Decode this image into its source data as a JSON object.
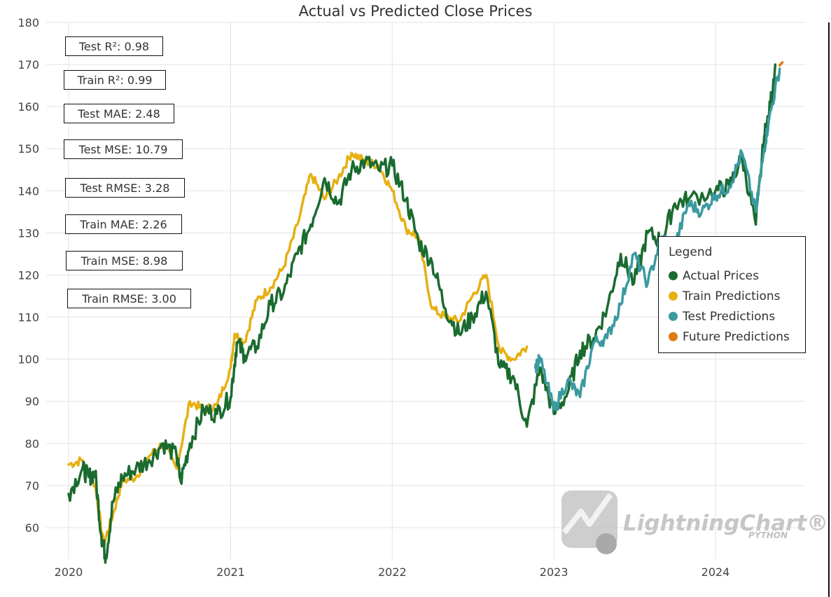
{
  "title": "Actual vs Predicted Close Prices",
  "metrics": [
    "Test R²: 0.98",
    "Train R²: 0.99",
    "Test MAE: 2.48",
    "Test MSE: 10.79",
    "Test RMSE: 3.28",
    "Train MAE: 2.26",
    "Train MSE: 8.98",
    "Train RMSE: 3.00"
  ],
  "legend": {
    "title": "Legend",
    "items": [
      {
        "label": "Actual Prices",
        "color": "#1a6b2f"
      },
      {
        "label": "Train Predictions",
        "color": "#e6b012"
      },
      {
        "label": "Test Predictions",
        "color": "#3a9aa0"
      },
      {
        "label": "Future Predictions",
        "color": "#e07a10"
      }
    ]
  },
  "watermark": {
    "brand": "LightningChart®",
    "sub": "PYTHON"
  },
  "chart_data": {
    "type": "line",
    "title": "Actual vs Predicted Close Prices",
    "xlabel": "",
    "ylabel": "",
    "x_ticks": [
      "2020",
      "2021",
      "2022",
      "2023",
      "2024"
    ],
    "y_ticks": [
      60,
      70,
      80,
      90,
      100,
      110,
      120,
      130,
      140,
      150,
      160,
      170,
      180
    ],
    "xlim": [
      "2020-01-01",
      "2024-05-31"
    ],
    "ylim": [
      52.5,
      180
    ],
    "grid": true,
    "legend_position": "right",
    "series": [
      {
        "name": "Actual Prices",
        "color": "#1a6b2f",
        "x": [
          "2020-01-01",
          "2020-02-01",
          "2020-02-15",
          "2020-03-01",
          "2020-03-15",
          "2020-03-25",
          "2020-04-10",
          "2020-05-01",
          "2020-06-01",
          "2020-07-01",
          "2020-08-01",
          "2020-09-01",
          "2020-09-10",
          "2020-10-01",
          "2020-11-01",
          "2020-12-01",
          "2021-01-01",
          "2021-01-15",
          "2021-02-01",
          "2021-03-01",
          "2021-04-01",
          "2021-05-01",
          "2021-06-01",
          "2021-07-01",
          "2021-08-01",
          "2021-09-01",
          "2021-10-01",
          "2021-11-01",
          "2021-12-01",
          "2022-01-01",
          "2022-02-01",
          "2022-03-01",
          "2022-04-01",
          "2022-05-01",
          "2022-06-01",
          "2022-07-01",
          "2022-08-01",
          "2022-09-01",
          "2022-10-01",
          "2022-11-01",
          "2022-12-01",
          "2023-01-01",
          "2023-02-01",
          "2023-03-01",
          "2023-04-01",
          "2023-05-01",
          "2023-06-01",
          "2023-07-01",
          "2023-08-01",
          "2023-09-01",
          "2023-10-01",
          "2023-11-01",
          "2024-01-01",
          "2024-02-01",
          "2024-03-01",
          "2024-04-01",
          "2024-04-20",
          "2024-05-01",
          "2024-05-15"
        ],
        "values": [
          68,
          74,
          72,
          73,
          58,
          53,
          66,
          72,
          74,
          76,
          80,
          77,
          71,
          80,
          88,
          87,
          91,
          104,
          101,
          103,
          113,
          116,
          125,
          132,
          143,
          137,
          145,
          147,
          145,
          146,
          138,
          128,
          123,
          112,
          106,
          110,
          116,
          98,
          96,
          84,
          98,
          87,
          92,
          102,
          105,
          112,
          125,
          118,
          130,
          128,
          137,
          138,
          140,
          141,
          148,
          132,
          153,
          158,
          170
        ]
      },
      {
        "name": "Train Predictions",
        "color": "#e6b012",
        "x": [
          "2020-01-01",
          "2020-02-01",
          "2020-03-01",
          "2020-03-20",
          "2020-04-10",
          "2020-05-01",
          "2020-06-01",
          "2020-07-01",
          "2020-08-01",
          "2020-09-01",
          "2020-10-01",
          "2020-11-01",
          "2020-12-01",
          "2021-01-01",
          "2021-01-10",
          "2021-02-01",
          "2021-03-01",
          "2021-04-01",
          "2021-05-01",
          "2021-06-01",
          "2021-07-01",
          "2021-08-01",
          "2021-09-01",
          "2021-10-01",
          "2021-11-01",
          "2021-12-01",
          "2022-01-01",
          "2022-02-01",
          "2022-03-01",
          "2022-04-01",
          "2022-05-01",
          "2022-06-01",
          "2022-07-01",
          "2022-08-01",
          "2022-09-01",
          "2022-10-01",
          "2022-11-01"
        ],
        "values": [
          75,
          76,
          70,
          56,
          63,
          71,
          72,
          77,
          80,
          74,
          90,
          88,
          89,
          98,
          106,
          104,
          114,
          117,
          122,
          132,
          144,
          138,
          143,
          149,
          147,
          146,
          140,
          131,
          129,
          112,
          110,
          109,
          115,
          120,
          102,
          100,
          103
        ]
      },
      {
        "name": "Test Predictions",
        "color": "#3a9aa0",
        "x": [
          "2022-11-20",
          "2022-12-01",
          "2023-01-01",
          "2023-02-01",
          "2023-03-01",
          "2023-04-01",
          "2023-05-01",
          "2023-06-01",
          "2023-07-01",
          "2023-08-01",
          "2023-09-01",
          "2023-10-01",
          "2023-11-01",
          "2023-12-01",
          "2024-01-01",
          "2024-02-01",
          "2024-03-01",
          "2024-04-01",
          "2024-04-20",
          "2024-05-01",
          "2024-05-25"
        ],
        "values": [
          98,
          100,
          88,
          95,
          91,
          104,
          105,
          113,
          125,
          118,
          129,
          127,
          137,
          135,
          139,
          141,
          149,
          135,
          150,
          157,
          169
        ]
      },
      {
        "name": "Future Predictions",
        "color": "#e07a10",
        "x": [
          "2024-05-25",
          "2024-05-31"
        ],
        "values": [
          169.8,
          170.5
        ]
      }
    ]
  }
}
